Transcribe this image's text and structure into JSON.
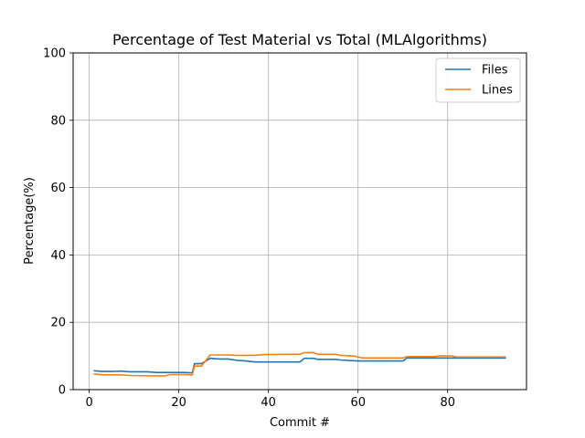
{
  "chart_data": {
    "type": "line",
    "title": "Percentage of Test Material vs Total (MLAlgorithms)",
    "xlabel": "Commit #",
    "ylabel": "Percentage(%)",
    "xlim": [
      -3.6,
      97.6
    ],
    "ylim": [
      0,
      100
    ],
    "xticks": [
      0,
      20,
      40,
      60,
      80
    ],
    "yticks": [
      0,
      20,
      40,
      60,
      80,
      100
    ],
    "grid": true,
    "legend_position": "top-right",
    "series": [
      {
        "name": "Files",
        "color": "#1f77b4",
        "points": [
          [
            1,
            5.6
          ],
          [
            3,
            5.4
          ],
          [
            5,
            5.4
          ],
          [
            7,
            5.5
          ],
          [
            9,
            5.3
          ],
          [
            13,
            5.3
          ],
          [
            15,
            5.1
          ],
          [
            21,
            5.1
          ],
          [
            23,
            5.0
          ],
          [
            23.5,
            7.7
          ],
          [
            25,
            7.7
          ],
          [
            27,
            9.3
          ],
          [
            29,
            9.1
          ],
          [
            31,
            9.1
          ],
          [
            33,
            8.7
          ],
          [
            35,
            8.5
          ],
          [
            37,
            8.2
          ],
          [
            47,
            8.2
          ],
          [
            48,
            9.3
          ],
          [
            50,
            9.3
          ],
          [
            51,
            9.0
          ],
          [
            55,
            9.0
          ],
          [
            56,
            8.8
          ],
          [
            60,
            8.5
          ],
          [
            70,
            8.5
          ],
          [
            71,
            9.4
          ],
          [
            93,
            9.4
          ]
        ]
      },
      {
        "name": "Lines",
        "color": "#ff7f0e",
        "points": [
          [
            1,
            4.7
          ],
          [
            3,
            4.4
          ],
          [
            7,
            4.4
          ],
          [
            9,
            4.2
          ],
          [
            15,
            4.1
          ],
          [
            17,
            4.1
          ],
          [
            18,
            4.5
          ],
          [
            21,
            4.5
          ],
          [
            23,
            4.4
          ],
          [
            23.5,
            7.0
          ],
          [
            25,
            7.0
          ],
          [
            27,
            10.3
          ],
          [
            31,
            10.3
          ],
          [
            33,
            10.2
          ],
          [
            37,
            10.2
          ],
          [
            39,
            10.4
          ],
          [
            43,
            10.5
          ],
          [
            47,
            10.5
          ],
          [
            48,
            11.0
          ],
          [
            50,
            11.0
          ],
          [
            51,
            10.5
          ],
          [
            55,
            10.5
          ],
          [
            56,
            10.2
          ],
          [
            59,
            10.0
          ],
          [
            61,
            9.4
          ],
          [
            70,
            9.4
          ],
          [
            71,
            9.8
          ],
          [
            77,
            9.8
          ],
          [
            78,
            10.0
          ],
          [
            81,
            10.0
          ],
          [
            82,
            9.7
          ],
          [
            93,
            9.7
          ]
        ]
      }
    ]
  }
}
